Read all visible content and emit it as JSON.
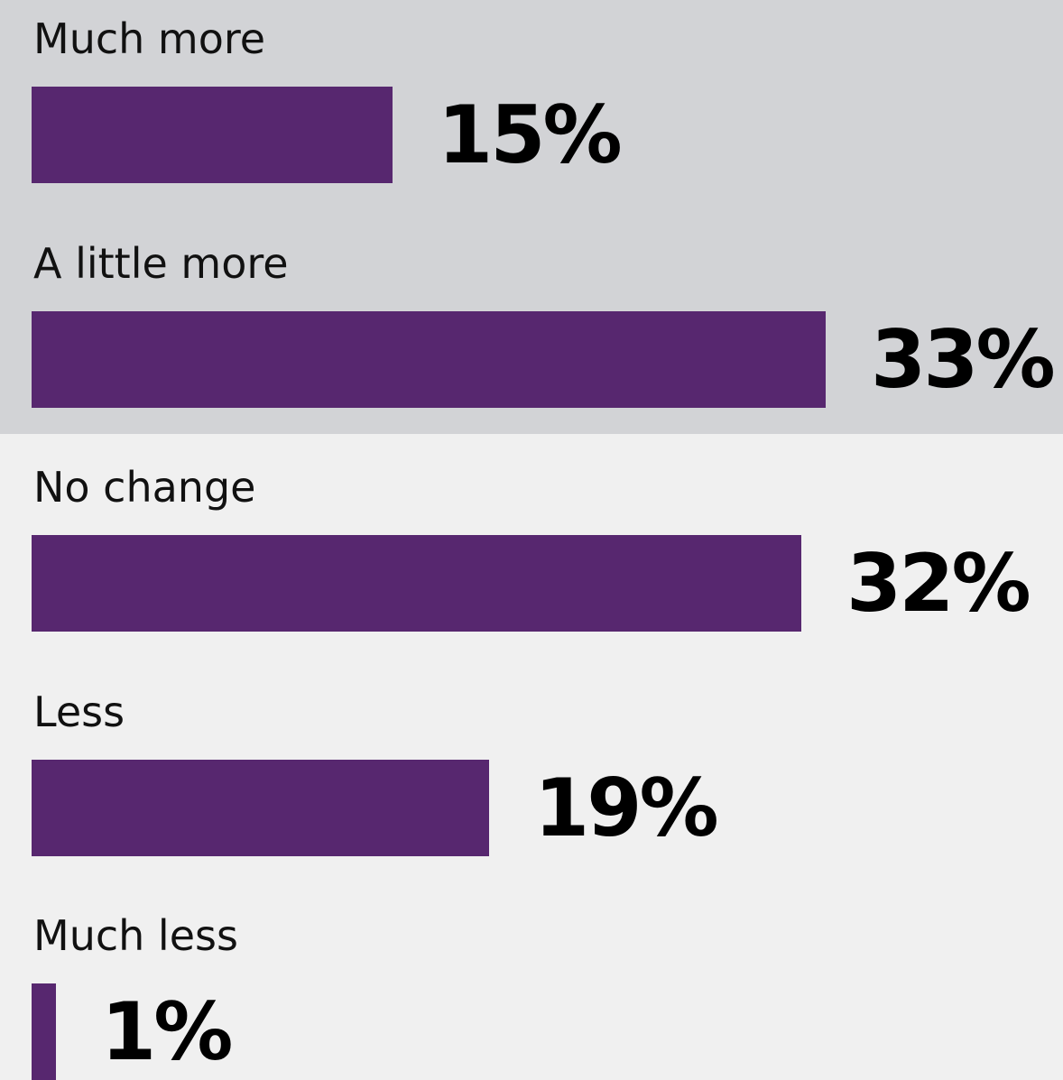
{
  "chart_data": {
    "type": "bar",
    "orientation": "horizontal",
    "categories": [
      "Much more",
      "A little more",
      "No change",
      "Less",
      "Much less"
    ],
    "values": [
      15,
      33,
      32,
      19,
      1
    ],
    "value_labels": [
      "15%",
      "33%",
      "32%",
      "19%",
      "1%"
    ],
    "unit": "%",
    "xlim": [
      0,
      33
    ],
    "bar_color": "#57276f",
    "highlighted_categories": [
      "Much more",
      "A little more"
    ],
    "highlight_color": "#d2d3d6",
    "background_color": "#f0f0f0",
    "grid": false,
    "legend": "none"
  }
}
